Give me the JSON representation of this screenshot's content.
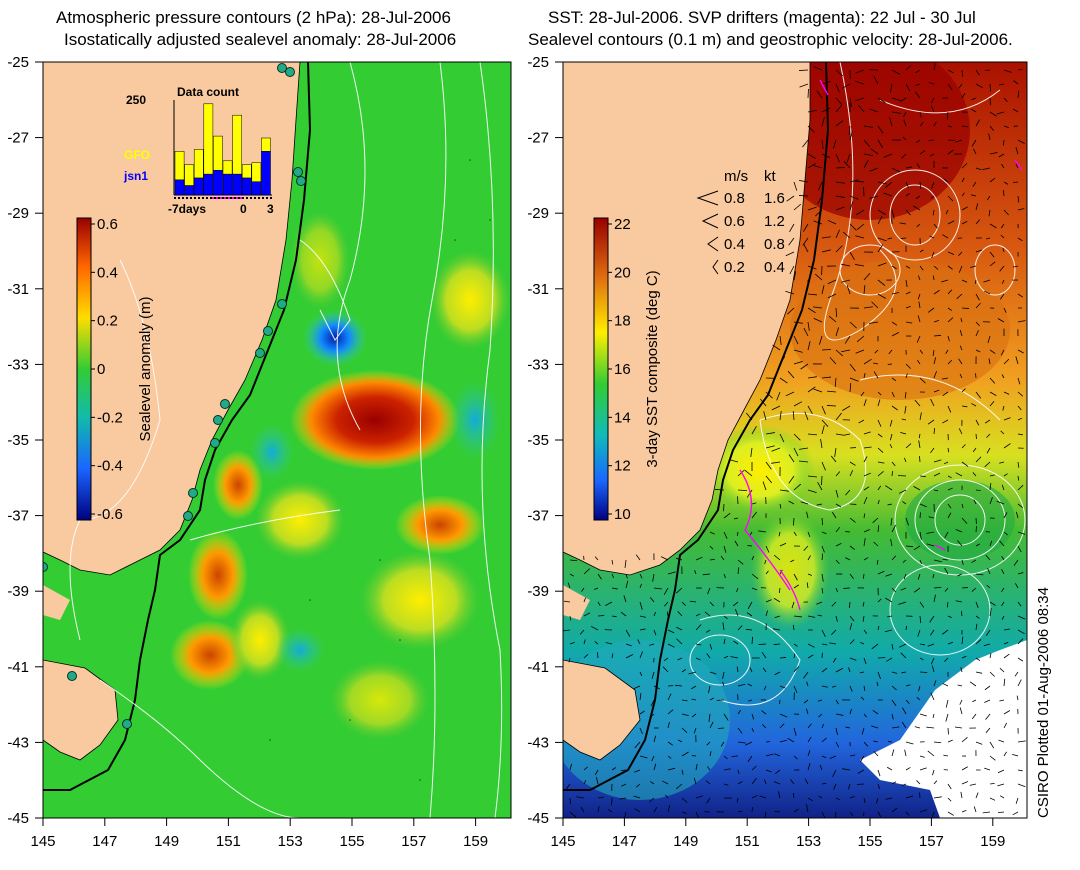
{
  "left_panel": {
    "title_line1": "Atmospheric pressure contours (2 hPa): 28-Jul-2006",
    "title_line2": "Isostatically adjusted sealevel anomaly: 28-Jul-2006",
    "colorbar_label": "Sealevel anomaly (m)",
    "colorbar_ticks": [
      "0.6",
      "0.4",
      "0.2",
      "0",
      "-0.2",
      "-0.4",
      "-0.6"
    ],
    "inset": {
      "title": "Data count",
      "ymax_label": "250",
      "legend_gfo": "GFO",
      "legend_jsn1": "jsn1",
      "x_left": "-7days",
      "x_mid": "0",
      "x_right": "3",
      "gfo_color": "#ffff00",
      "jsn1_color": "#0000ff",
      "gfo_bars": [
        0.3,
        0.22,
        0.3,
        0.74,
        0.36,
        0.14,
        0.62,
        0.14,
        0.2,
        0.14
      ],
      "jsn1_bars": [
        0.16,
        0.1,
        0.18,
        0.22,
        0.26,
        0.22,
        0.22,
        0.18,
        0.14,
        0.46
      ]
    }
  },
  "right_panel": {
    "title_line1": "SST: 28-Jul-2006. SVP drifters (magenta): 22 Jul - 30 Jul",
    "title_line2": "Sealevel contours (0.1 m) and geostrophic velocity: 28-Jul-2006.",
    "colorbar_label": "3-day SST composite (deg C)",
    "colorbar_ticks": [
      "22",
      "20",
      "18",
      "16",
      "14",
      "12",
      "10"
    ],
    "velocity_legend": {
      "header_ms": "m/s",
      "header_kt": "kt",
      "rows": [
        {
          "ms": "0.8",
          "kt": "1.6"
        },
        {
          "ms": "0.6",
          "kt": "1.2"
        },
        {
          "ms": "0.4",
          "kt": "0.8"
        },
        {
          "ms": "0.2",
          "kt": "0.4"
        }
      ]
    }
  },
  "lat_ticks": [
    "-25",
    "-27",
    "-29",
    "-31",
    "-33",
    "-35",
    "-37",
    "-39",
    "-41",
    "-43",
    "-45"
  ],
  "lon_ticks": [
    "145",
    "147",
    "149",
    "151",
    "153",
    "155",
    "157",
    "159"
  ],
  "credit": "CSIRO Plotted 01-Aug-2006 08:34",
  "colors": {
    "land": "#f9c99f",
    "ocean_green": "#33cc33",
    "high": "#990000",
    "low": "#000080"
  }
}
